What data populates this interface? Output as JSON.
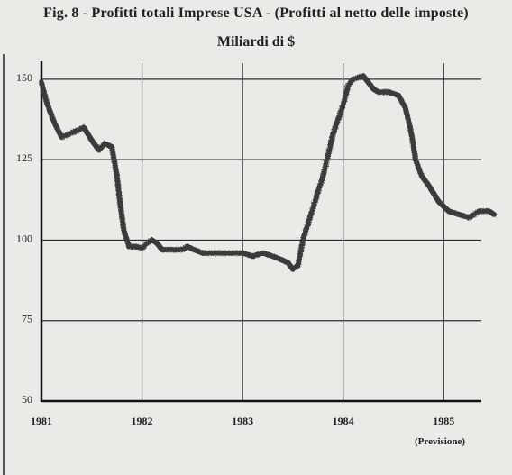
{
  "title": "Fig. 8 - Profitti totali Imprese USA - (Profitti al netto delle imposte)",
  "subtitle": "Miliardi di $",
  "note": "(Previsione)",
  "colors": {
    "line": "#3a3a3a",
    "grid": "#2a2a2a",
    "background": "#eceae6"
  },
  "chart_data": {
    "type": "line",
    "title": "Fig. 8 - Profitti totali Imprese USA - (Profitti al netto delle imposte)",
    "subtitle": "Miliardi di $",
    "xlabel": "",
    "ylabel": "",
    "xlim": [
      1981,
      1985.5
    ],
    "ylim": [
      50,
      155
    ],
    "x_ticks": [
      1981,
      1982,
      1983,
      1984,
      1985
    ],
    "x_tick_labels": [
      "1981",
      "1982",
      "1983",
      "1984",
      "1985"
    ],
    "y_ticks": [
      50,
      75,
      100,
      125,
      150
    ],
    "y_tick_labels": [
      "50",
      "75",
      "100",
      "125",
      "150"
    ],
    "grid": true,
    "annotation": "(Previsione)",
    "series": [
      {
        "x": [
          1981.0,
          1981.05,
          1981.12,
          1981.2,
          1981.28,
          1981.35,
          1981.42,
          1981.5,
          1981.57,
          1981.63,
          1981.7,
          1981.75,
          1981.78,
          1981.82,
          1981.87,
          1981.9,
          1981.95,
          1982.0,
          1982.05,
          1982.1,
          1982.15,
          1982.2,
          1982.3,
          1982.4,
          1982.45,
          1982.52,
          1982.6,
          1982.7,
          1982.8,
          1982.9,
          1983.0,
          1983.1,
          1983.2,
          1983.3,
          1983.38,
          1983.45,
          1983.5,
          1983.55,
          1983.6,
          1983.7,
          1983.8,
          1983.9,
          1984.0,
          1984.05,
          1984.1,
          1984.2,
          1984.25,
          1984.3,
          1984.35,
          1984.45,
          1984.55,
          1984.62,
          1984.68,
          1984.72,
          1984.78,
          1984.85,
          1984.95,
          1985.05,
          1985.15,
          1985.25,
          1985.35,
          1985.45,
          1985.5
        ],
        "y": [
          149,
          143,
          137,
          132,
          133,
          134,
          135,
          131,
          128,
          130,
          129,
          120,
          112,
          103,
          98,
          98,
          98,
          97.5,
          99,
          100,
          99,
          97,
          97,
          97,
          98,
          97,
          96,
          96,
          96,
          96,
          96,
          95,
          96,
          95,
          94,
          93,
          91,
          92,
          100,
          110,
          120,
          133,
          142,
          148,
          150,
          151,
          149,
          147,
          146,
          146,
          145,
          141,
          133,
          125,
          120,
          117,
          112,
          109,
          108,
          107,
          109,
          109,
          108
        ]
      }
    ]
  }
}
